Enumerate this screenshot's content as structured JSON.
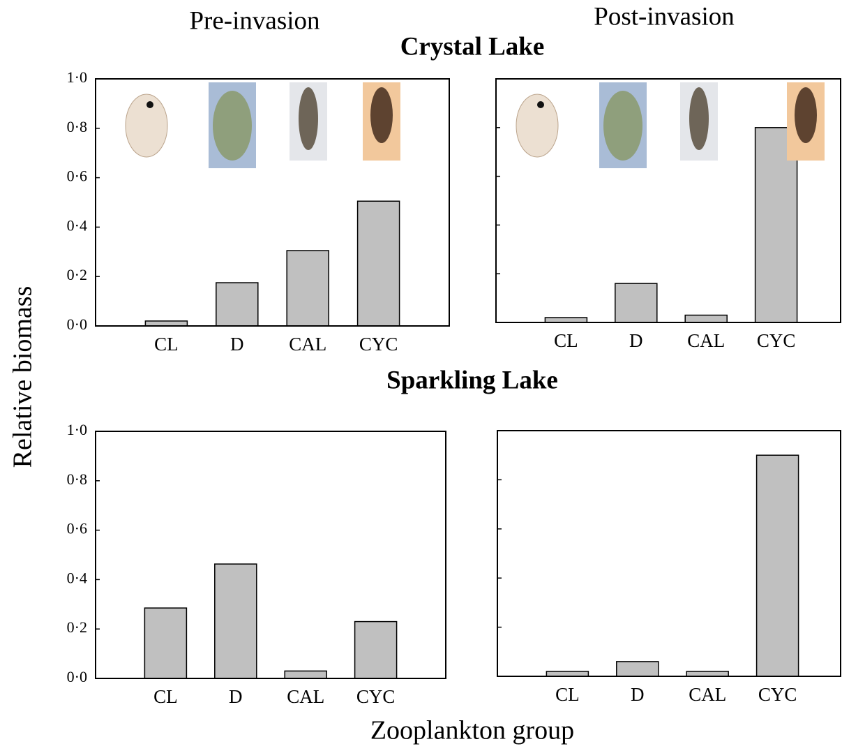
{
  "column_titles": [
    "Pre-invasion",
    "Post-invasion"
  ],
  "row_titles": [
    "Crystal Lake",
    "Sparkling Lake"
  ],
  "ylabel": "Relative biomass",
  "xlabel": "Zooplankton group",
  "chart_data": [
    {
      "type": "bar",
      "categories": [
        "CL",
        "D",
        "CAL",
        "CYC"
      ],
      "values": [
        0.02,
        0.175,
        0.305,
        0.505
      ],
      "color": "#c0c0c0",
      "ylim": [
        0,
        1
      ],
      "yticks": [
        {
          "value": 0,
          "label": "0·0"
        },
        {
          "value": 0.2,
          "label": "0·2"
        },
        {
          "value": 0.4,
          "label": "0·4"
        },
        {
          "value": 0.6,
          "label": "0·6"
        },
        {
          "value": 0.8,
          "label": "0·8"
        },
        {
          "value": 1,
          "label": "1·0"
        }
      ],
      "show_ytick_labels": true
    },
    {
      "type": "bar",
      "categories": [
        "CL",
        "D",
        "CAL",
        "CYC"
      ],
      "values": [
        0.02,
        0.16,
        0.03,
        0.8
      ],
      "color": "#c0c0c0",
      "ylim": [
        0,
        1
      ],
      "yticks": [
        0,
        0.2,
        0.4,
        0.6,
        0.8,
        1
      ],
      "show_ytick_labels": false
    },
    {
      "type": "bar",
      "categories": [
        "CL",
        "D",
        "CAL",
        "CYC"
      ],
      "values": [
        0.285,
        0.463,
        0.03,
        0.23
      ],
      "color": "#c0c0c0",
      "ylim": [
        0,
        1
      ],
      "yticks": [
        {
          "value": 0,
          "label": "0·0"
        },
        {
          "value": 0.2,
          "label": "0·2"
        },
        {
          "value": 0.4,
          "label": "0·4"
        },
        {
          "value": 0.6,
          "label": "0·6"
        },
        {
          "value": 0.8,
          "label": "0·8"
        },
        {
          "value": 1,
          "label": "1·0"
        }
      ],
      "show_ytick_labels": true
    },
    {
      "type": "bar",
      "categories": [
        "CL",
        "D",
        "CAL",
        "CYC"
      ],
      "values": [
        0.02,
        0.06,
        0.02,
        0.9
      ],
      "color": "#c0c0c0",
      "ylim": [
        0,
        1
      ],
      "yticks": [
        0,
        0.2,
        0.4,
        0.6,
        0.8,
        1
      ],
      "show_ytick_labels": false
    }
  ]
}
